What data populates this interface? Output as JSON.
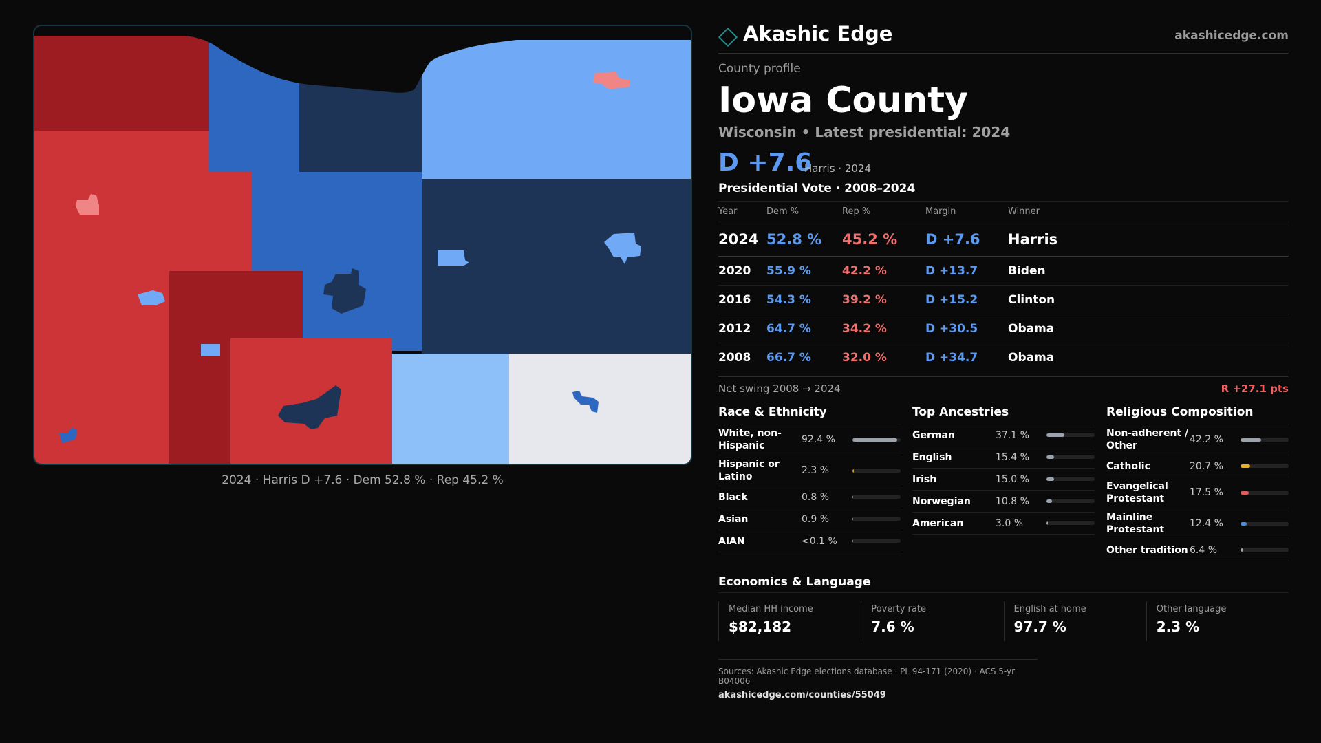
{
  "brand": {
    "name": "Akashic Edge",
    "url": "akashicedge.com"
  },
  "profile": {
    "eyebrow": "County profile",
    "county": "Iowa County",
    "subtitle": "Wisconsin • Latest presidential: 2024",
    "margin": "D +7.6",
    "margin_note": "Harris · 2024"
  },
  "map": {
    "caption": "2024 · Harris D +7.6 · Dem 52.8 % · Rep 45.2 %",
    "colors": {
      "rep_dark": "#9c1c21",
      "rep": "#cd3437",
      "rep_light": "#f08585",
      "dem_light": "#70aaf7",
      "dem_pale": "#8dbff9",
      "dem": "#2e67bf",
      "dem_navy": "#1d3457",
      "neutral": "#e6e8ee"
    }
  },
  "votes": {
    "title": "Presidential Vote · 2008–2024",
    "headers": {
      "year": "Year",
      "dem": "Dem %",
      "rep": "Rep %",
      "margin": "Margin",
      "winner": "Winner"
    },
    "rows": [
      {
        "year": "2024",
        "dem": "52.8 %",
        "rep": "45.2 %",
        "margin": "D +7.6",
        "winner": "Harris"
      },
      {
        "year": "2020",
        "dem": "55.9 %",
        "rep": "42.2 %",
        "margin": "D +13.7",
        "winner": "Biden"
      },
      {
        "year": "2016",
        "dem": "54.3 %",
        "rep": "39.2 %",
        "margin": "D +15.2",
        "winner": "Clinton"
      },
      {
        "year": "2012",
        "dem": "64.7 %",
        "rep": "34.2 %",
        "margin": "D +30.5",
        "winner": "Obama"
      },
      {
        "year": "2008",
        "dem": "66.7 %",
        "rep": "32.0 %",
        "margin": "D +34.7",
        "winner": "Obama"
      }
    ],
    "swing_label": "Net swing 2008 → 2024",
    "swing_value": "R +27.1 pts"
  },
  "race": {
    "title": "Race & Ethnicity",
    "rows": [
      {
        "label": "White, non-Hispanic",
        "value": "92.4 %",
        "share": 0.924,
        "color": "#9aa3ad"
      },
      {
        "label": "Hispanic or Latino",
        "value": "2.3 %",
        "share": 0.023,
        "color": "#e0a030"
      },
      {
        "label": "Black",
        "value": "0.8 %",
        "share": 0.008,
        "color": "#9aa3ad"
      },
      {
        "label": "Asian",
        "value": "0.9 %",
        "share": 0.009,
        "color": "#9aa3ad"
      },
      {
        "label": "AIAN",
        "value": "<0.1 %",
        "share": 0.0,
        "color": "#9aa3ad"
      }
    ]
  },
  "ancestry": {
    "title": "Top Ancestries",
    "rows": [
      {
        "label": "German",
        "value": "37.1 %",
        "share": 0.371,
        "color": "#9aa3ad"
      },
      {
        "label": "English",
        "value": "15.4 %",
        "share": 0.154,
        "color": "#9aa3ad"
      },
      {
        "label": "Irish",
        "value": "15.0 %",
        "share": 0.15,
        "color": "#9aa3ad"
      },
      {
        "label": "Norwegian",
        "value": "10.8 %",
        "share": 0.108,
        "color": "#9aa3ad"
      },
      {
        "label": "American",
        "value": "3.0 %",
        "share": 0.03,
        "color": "#9aa3ad"
      }
    ]
  },
  "religion": {
    "title": "Religious Composition",
    "rows": [
      {
        "label": "Non-adherent / Other",
        "value": "42.2 %",
        "share": 0.422,
        "color": "#9aa3ad"
      },
      {
        "label": "Catholic",
        "value": "20.7 %",
        "share": 0.207,
        "color": "#e8b020"
      },
      {
        "label": "Evangelical Protestant",
        "value": "17.5 %",
        "share": 0.175,
        "color": "#e05a5a"
      },
      {
        "label": "Mainline Protestant",
        "value": "12.4 %",
        "share": 0.124,
        "color": "#4a8ee6"
      },
      {
        "label": "Other tradition",
        "value": "6.4 %",
        "share": 0.064,
        "color": "#9aa3ad"
      }
    ]
  },
  "econ": {
    "title": "Economics & Language",
    "cells": [
      {
        "label": "Median HH income",
        "value": "$82,182"
      },
      {
        "label": "Poverty rate",
        "value": "7.6 %"
      },
      {
        "label": "English at home",
        "value": "97.7 %"
      },
      {
        "label": "Other language",
        "value": "2.3 %"
      }
    ]
  },
  "footer": {
    "sources": "Sources: Akashic Edge elections database · PL 94-171 (2020) · ACS 5-yr B04006",
    "url": "akashicedge.com/counties/55049"
  }
}
